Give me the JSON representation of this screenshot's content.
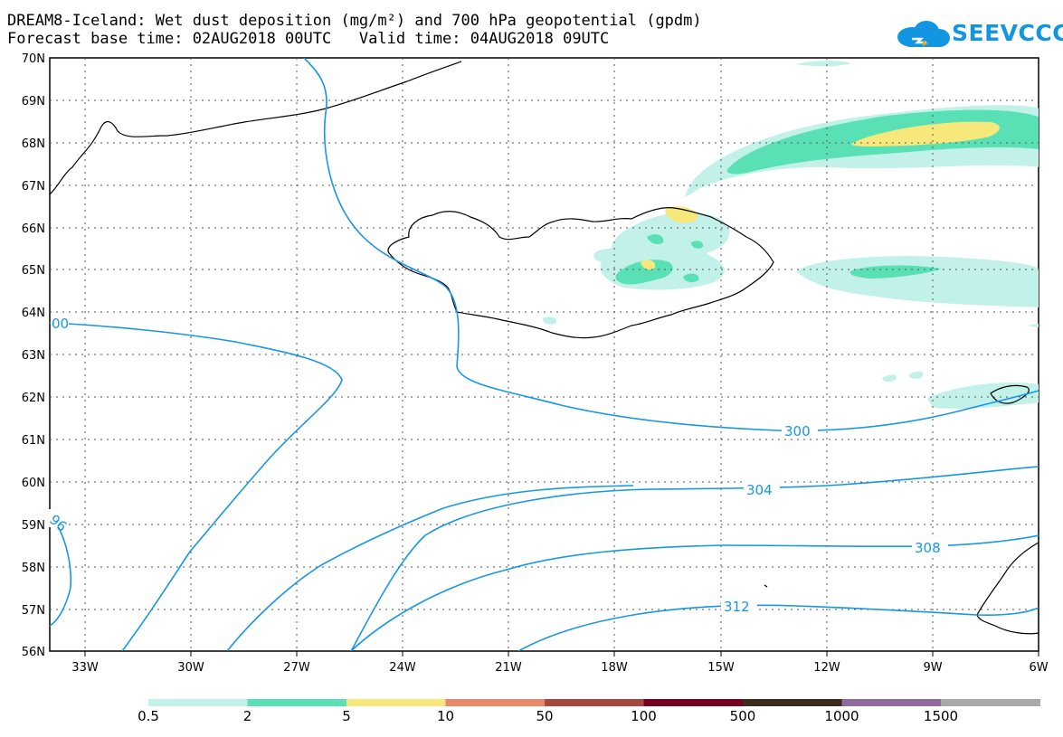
{
  "title": "DREAM8-Iceland: Wet dust deposition (mg/m²) and 700 hPa geopotential (gpdm)",
  "subtitle": "Forecast base time: 02AUG2018 00UTC   Valid time: 04AUG2018 09UTC",
  "logo_text": "SEEVCCC",
  "lat_labels": [
    "70N",
    "69N",
    "68N",
    "67N",
    "66N",
    "65N",
    "64N",
    "63N",
    "62N",
    "61N",
    "60N",
    "59N",
    "58N",
    "57N",
    "56N"
  ],
  "lon_labels": [
    "33W",
    "30W",
    "27W",
    "24W",
    "21W",
    "18W",
    "15W",
    "12W",
    "9W",
    "6W"
  ],
  "contour_labels": [
    "300",
    "304",
    "308",
    "312",
    "96",
    "00"
  ],
  "colorbar": {
    "labels": [
      "0.5",
      "2",
      "5",
      "10",
      "50",
      "100",
      "500",
      "1000",
      "1500"
    ],
    "colors": [
      "#c1f1e9",
      "#59e0b5",
      "#f7e87b",
      "#e88a6a",
      "#a7473f",
      "#7a0022",
      "#3b2a1d",
      "#8e6a9e",
      "#a9a9a9"
    ]
  },
  "colors": {
    "coast": "#000000",
    "contour": "#1797e6"
  }
}
